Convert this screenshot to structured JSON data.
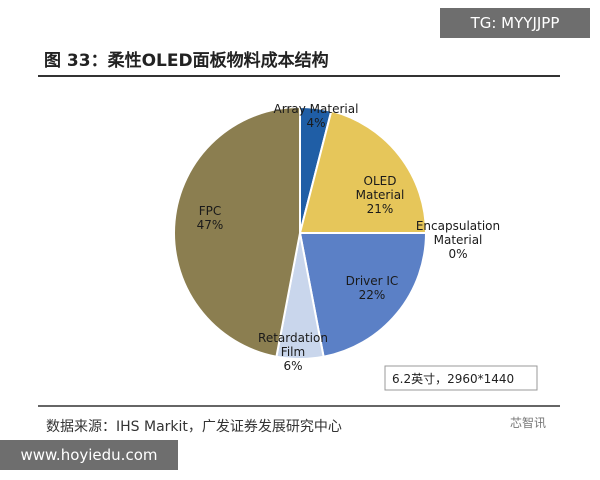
{
  "chart_data": {
    "type": "pie",
    "title": "图 33：柔性OLED面板物料成本结构",
    "categories": [
      "Array Material",
      "OLED Material",
      "Encapsulation Material",
      "Driver IC",
      "Retardation Film",
      "FPC"
    ],
    "values": [
      4,
      21,
      0,
      22,
      6,
      47
    ],
    "value_labels": [
      "4%",
      "21%",
      "0%",
      "22%",
      "6%",
      "47%"
    ],
    "colors": [
      "#1f5ea6",
      "#e6c65a",
      "#d9d9d9",
      "#5b80c6",
      "#c9d6ec",
      "#8b7e50"
    ],
    "annotation": "6.2英寸，2960*1440",
    "source": "数据来源：IHS Markit，广发证券发展研究中心",
    "logo": "芯智讯"
  },
  "watermarks": [
    "TG: MYYJJPP",
    "www.hoyiedu.com"
  ]
}
